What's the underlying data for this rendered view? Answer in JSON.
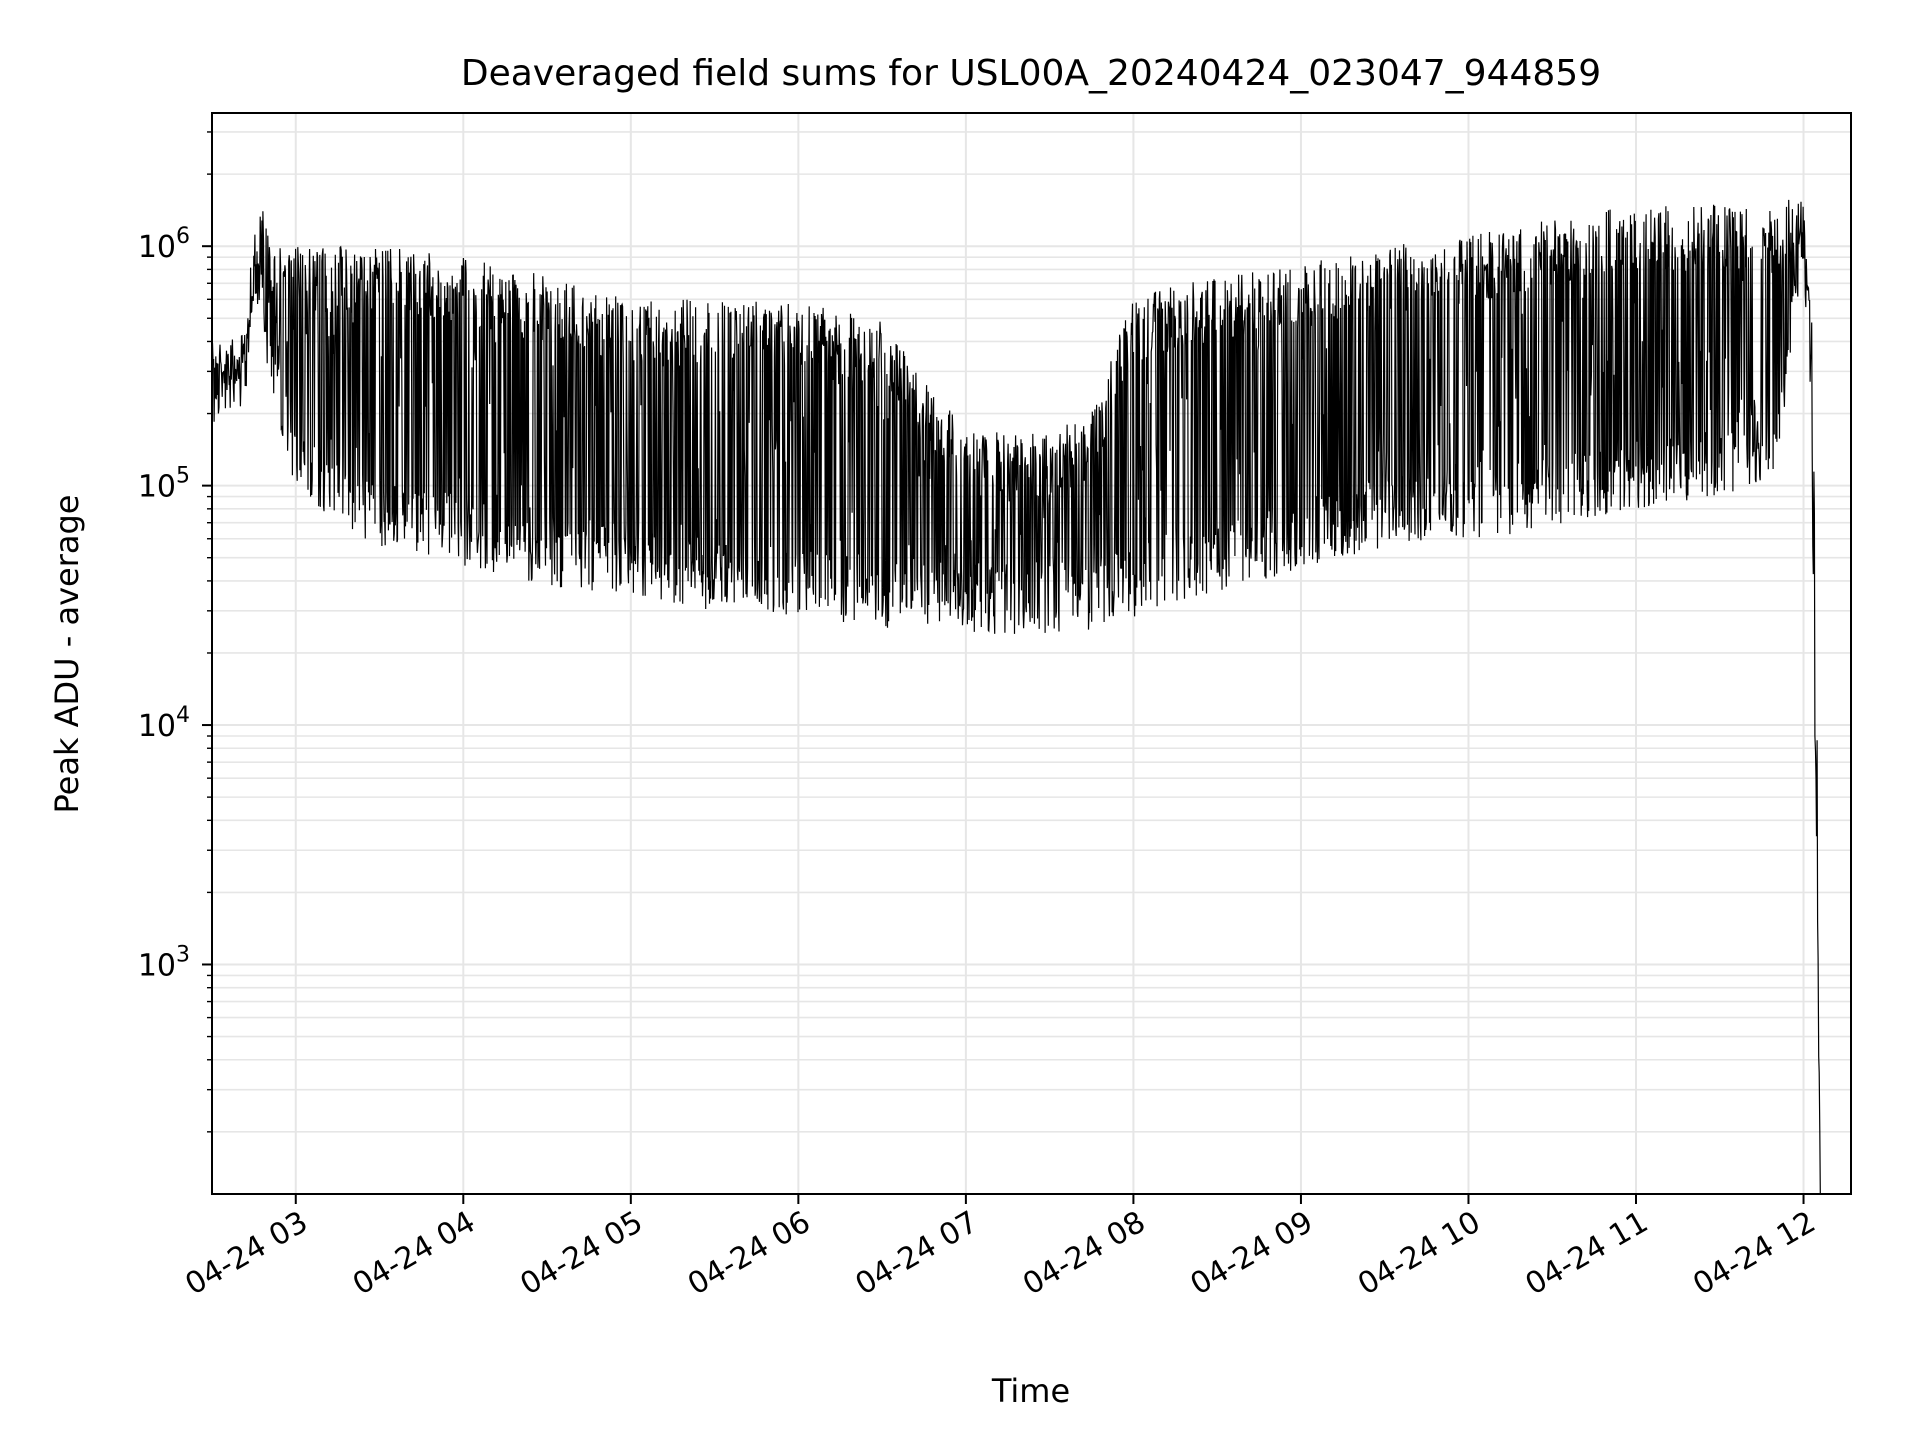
{
  "chart_data": {
    "type": "line",
    "title": "Deaveraged field sums for USL00A_20240424_023047_944859",
    "xlabel": "Time",
    "ylabel": "Peak ADU - average",
    "yscale": "log",
    "ylim": [
      110,
      3600000
    ],
    "xlim": [
      "2024-04-24 02:30",
      "2024-04-24 12:17"
    ],
    "grid": true,
    "x_ticks": [
      "04-24 03",
      "04-24 04",
      "04-24 05",
      "04-24 06",
      "04-24 07",
      "04-24 08",
      "04-24 09",
      "04-24 10",
      "04-24 11",
      "04-24 12"
    ],
    "y_ticks": [
      {
        "base": "10",
        "exp": "3",
        "value": 1000
      },
      {
        "base": "10",
        "exp": "4",
        "value": 10000
      },
      {
        "base": "10",
        "exp": "5",
        "value": 100000
      },
      {
        "base": "10",
        "exp": "6",
        "value": 1000000
      }
    ],
    "series": [
      {
        "color": "#000000",
        "envelope": {
          "time": [
            "2024-04-24 02:30",
            "2024-04-24 02:42",
            "2024-04-24 02:45",
            "2024-04-24 02:48",
            "2024-04-24 02:50",
            "2024-04-24 03:00",
            "2024-04-24 03:30",
            "2024-04-24 04:00",
            "2024-04-24 04:30",
            "2024-04-24 05:00",
            "2024-04-24 05:30",
            "2024-04-24 06:00",
            "2024-04-24 06:30",
            "2024-04-24 06:45",
            "2024-04-24 07:00",
            "2024-04-24 07:30",
            "2024-04-24 07:45",
            "2024-04-24 08:00",
            "2024-04-24 08:30",
            "2024-04-24 09:00",
            "2024-04-24 09:30",
            "2024-04-24 10:00",
            "2024-04-24 10:30",
            "2024-04-24 11:00",
            "2024-04-24 11:30",
            "2024-04-24 11:50",
            "2024-04-24 11:55",
            "2024-04-24 12:00",
            "2024-04-24 12:03",
            "2024-04-24 12:05",
            "2024-04-24 12:06"
          ],
          "upper": [
            350000,
            380000,
            1100000,
            1700000,
            1100000,
            1000000,
            1000000,
            900000,
            750000,
            600000,
            600000,
            600000,
            500000,
            280000,
            170000,
            170000,
            200000,
            620000,
            750000,
            850000,
            1000000,
            1100000,
            1300000,
            1500000,
            1500000,
            1400000,
            1600000,
            1500000,
            500000,
            10000,
            100
          ],
          "lower": [
            220000,
            280000,
            600000,
            500000,
            300000,
            90000,
            55000,
            45000,
            38000,
            35000,
            30000,
            28000,
            25000,
            26000,
            24000,
            24000,
            25000,
            28000,
            35000,
            45000,
            55000,
            60000,
            65000,
            80000,
            90000,
            110000,
            300000,
            1000000,
            100000,
            1000,
            100
          ]
        }
      }
    ]
  }
}
